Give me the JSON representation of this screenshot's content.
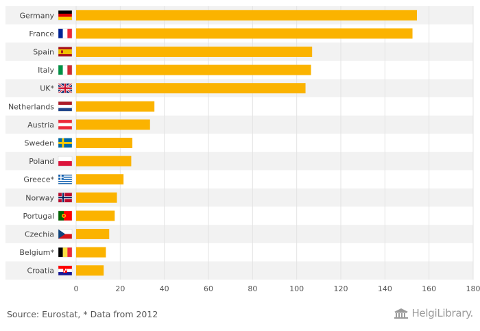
{
  "chart_data": {
    "type": "bar",
    "orientation": "horizontal",
    "categories": [
      "Germany",
      "France",
      "Spain",
      "Italy",
      "UK*",
      "Netherlands",
      "Austria",
      "Sweden",
      "Poland",
      "Greece*",
      "Norway",
      "Portugal",
      "Czechia",
      "Belgium*",
      "Croatia"
    ],
    "flags": [
      "flag-germany-icon",
      "flag-france-icon",
      "flag-spain-icon",
      "flag-italy-icon",
      "flag-uk-icon",
      "flag-netherlands-icon",
      "flag-austria-icon",
      "flag-sweden-icon",
      "flag-poland-icon",
      "flag-greece-icon",
      "flag-norway-icon",
      "flag-portugal-icon",
      "flag-czechia-icon",
      "flag-belgium-icon",
      "flag-croatia-icon"
    ],
    "values": [
      154.5,
      152.5,
      107,
      106.5,
      104,
      35.5,
      33.5,
      25.5,
      25,
      21.5,
      18.5,
      17.5,
      15,
      13.5,
      12.5
    ],
    "xlim": [
      0,
      180
    ],
    "xticks": [
      0,
      20,
      40,
      60,
      80,
      100,
      120,
      140,
      160,
      180
    ],
    "grid": true,
    "bar_color": "#fbb300",
    "band_color": "#f2f2f2"
  },
  "footer": {
    "source": "Source: Eurostat, * Data from 2012",
    "brand": "HelgiLibrary."
  }
}
